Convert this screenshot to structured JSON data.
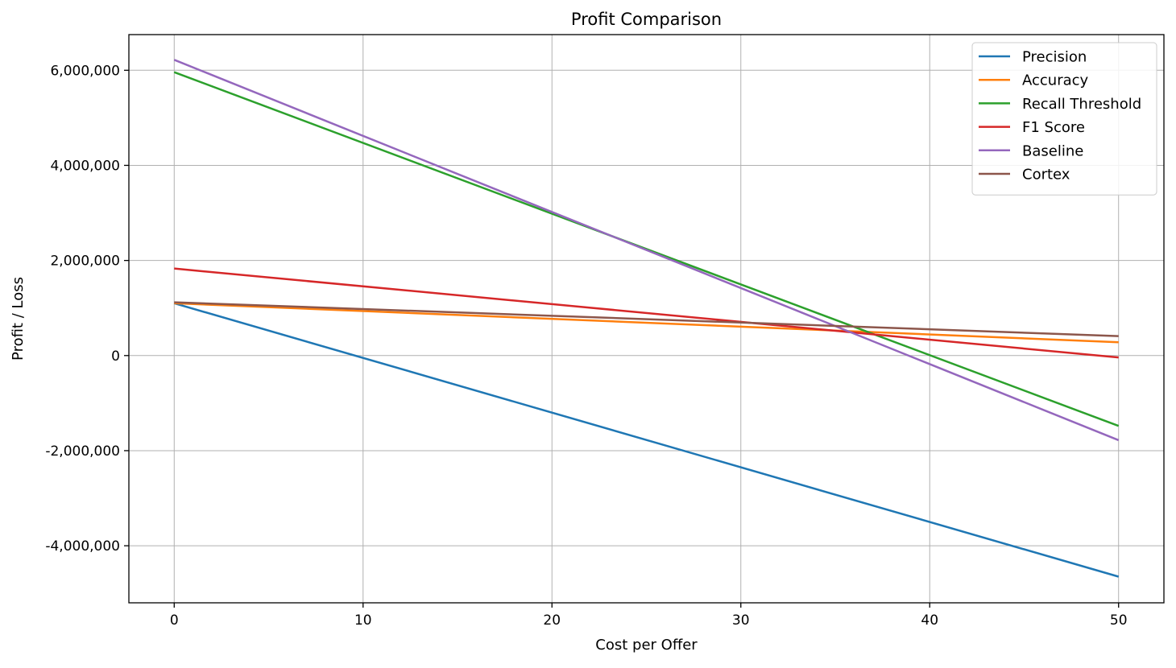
{
  "chart_data": {
    "type": "line",
    "title": "Profit Comparison",
    "xlabel": "Cost per Offer",
    "ylabel": "Profit / Loss",
    "xlim": [
      -2.4,
      52.4
    ],
    "ylim": [
      -5200000,
      6750000
    ],
    "xticks": [
      0,
      10,
      20,
      30,
      40,
      50
    ],
    "yticks": [
      -4000000,
      -2000000,
      0,
      2000000,
      4000000,
      6000000
    ],
    "xtick_labels": [
      "0",
      "10",
      "20",
      "30",
      "40",
      "50"
    ],
    "ytick_labels": [
      "-4,000,000",
      "-2,000,000",
      "0",
      "2,000,000",
      "4,000,000",
      "6,000,000"
    ],
    "grid": true,
    "legend_position": "top-right",
    "x": [
      0,
      50
    ],
    "series": [
      {
        "name": "Precision",
        "color": "#1f77b4",
        "values": [
          1100000,
          -4650000
        ]
      },
      {
        "name": "Accuracy",
        "color": "#ff7f0e",
        "values": [
          1100000,
          280000
        ]
      },
      {
        "name": "Recall Threshold",
        "color": "#2ca02c",
        "values": [
          5960000,
          -1480000
        ]
      },
      {
        "name": "F1 Score",
        "color": "#d62728",
        "values": [
          1830000,
          -40000
        ]
      },
      {
        "name": "Baseline",
        "color": "#9467bd",
        "values": [
          6220000,
          -1780000
        ]
      },
      {
        "name": "Cortex",
        "color": "#8c564b",
        "values": [
          1120000,
          410000
        ]
      }
    ]
  }
}
